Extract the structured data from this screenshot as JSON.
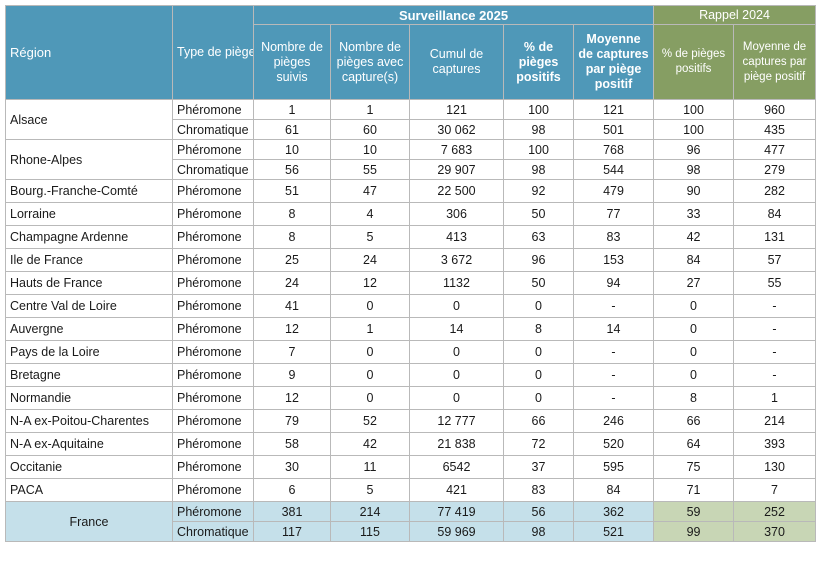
{
  "header": {
    "region": "Région",
    "type": "Type de piège",
    "group_2025": "Surveillance 2025",
    "group_2024": "Rappel 2024",
    "col_suivis": "Nombre de pièges suivis",
    "col_capture": "Nombre de pièges avec capture(s)",
    "col_cumul": "Cumul de captures",
    "col_pct": "% de pièges positifs",
    "col_moy": "Moyenne de captures par piège positif",
    "col_pct_2024": "% de pièges positifs",
    "col_moy_2024": "Moyenne de captures par piège positif"
  },
  "rows": [
    {
      "region": "Alsace",
      "lines": [
        {
          "type": "Phéromone",
          "suivis": "1",
          "capture": "1",
          "cumul": "121",
          "pct": "100",
          "moy": "121",
          "pct24": "100",
          "moy24": "960"
        },
        {
          "type": "Chromatique",
          "suivis": "61",
          "capture": "60",
          "cumul": "30 062",
          "pct": "98",
          "moy": "501",
          "pct24": "100",
          "moy24": "435"
        }
      ]
    },
    {
      "region": "Rhone-Alpes",
      "lines": [
        {
          "type": "Phéromone",
          "suivis": "10",
          "capture": "10",
          "cumul": "7 683",
          "pct": "100",
          "moy": "768",
          "pct24": "96",
          "moy24": "477"
        },
        {
          "type": "Chromatique",
          "suivis": "56",
          "capture": "55",
          "cumul": "29 907",
          "pct": "98",
          "moy": "544",
          "pct24": "98",
          "moy24": "279"
        }
      ]
    },
    {
      "region": "Bourg.-Franche-Comté",
      "lines": [
        {
          "type": "Phéromone",
          "suivis": "51",
          "capture": "47",
          "cumul": "22 500",
          "pct": "92",
          "moy": "479",
          "pct24": "90",
          "moy24": "282"
        }
      ]
    },
    {
      "region": "Lorraine",
      "lines": [
        {
          "type": "Phéromone",
          "suivis": "8",
          "capture": "4",
          "cumul": "306",
          "pct": "50",
          "moy": "77",
          "pct24": "33",
          "moy24": "84"
        }
      ]
    },
    {
      "region": "Champagne Ardenne",
      "lines": [
        {
          "type": "Phéromone",
          "suivis": "8",
          "capture": "5",
          "cumul": "413",
          "pct": "63",
          "moy": "83",
          "pct24": "42",
          "moy24": "131"
        }
      ]
    },
    {
      "region": "Ile de France",
      "lines": [
        {
          "type": "Phéromone",
          "suivis": "25",
          "capture": "24",
          "cumul": "3 672",
          "pct": "96",
          "moy": "153",
          "pct24": "84",
          "moy24": "57"
        }
      ]
    },
    {
      "region": "Hauts de France",
      "lines": [
        {
          "type": "Phéromone",
          "suivis": "24",
          "capture": "12",
          "cumul": "1132",
          "pct": "50",
          "moy": "94",
          "pct24": "27",
          "moy24": "55"
        }
      ]
    },
    {
      "region": "Centre Val de Loire",
      "lines": [
        {
          "type": "Phéromone",
          "suivis": "41",
          "capture": "0",
          "cumul": "0",
          "pct": "0",
          "moy": "-",
          "pct24": "0",
          "moy24": "-"
        }
      ]
    },
    {
      "region": "Auvergne",
      "lines": [
        {
          "type": "Phéromone",
          "suivis": "12",
          "capture": "1",
          "cumul": "14",
          "pct": "8",
          "moy": "14",
          "pct24": "0",
          "moy24": "-"
        }
      ]
    },
    {
      "region": "Pays de la Loire",
      "lines": [
        {
          "type": "Phéromone",
          "suivis": "7",
          "capture": "0",
          "cumul": "0",
          "pct": "0",
          "moy": "-",
          "pct24": "0",
          "moy24": "-"
        }
      ]
    },
    {
      "region": "Bretagne",
      "lines": [
        {
          "type": "Phéromone",
          "suivis": "9",
          "capture": "0",
          "cumul": "0",
          "pct": "0",
          "moy": "-",
          "pct24": "0",
          "moy24": "-"
        }
      ]
    },
    {
      "region": "Normandie",
      "lines": [
        {
          "type": "Phéromone",
          "suivis": "12",
          "capture": "0",
          "cumul": "0",
          "pct": "0",
          "moy": "-",
          "pct24": "8",
          "moy24": "1"
        }
      ]
    },
    {
      "region": "N-A ex-Poitou-Charentes",
      "lines": [
        {
          "type": "Phéromone",
          "suivis": "79",
          "capture": "52",
          "cumul": "12 777",
          "pct": "66",
          "moy": "246",
          "pct24": "66",
          "moy24": "214"
        }
      ]
    },
    {
      "region": "N-A ex-Aquitaine",
      "lines": [
        {
          "type": "Phéromone",
          "suivis": "58",
          "capture": "42",
          "cumul": "21 838",
          "pct": "72",
          "moy": "520",
          "pct24": "64",
          "moy24": "393"
        }
      ]
    },
    {
      "region": "Occitanie",
      "lines": [
        {
          "type": "Phéromone",
          "suivis": "30",
          "capture": "11",
          "cumul": "6542",
          "pct": "37",
          "moy": "595",
          "pct24": "75",
          "moy24": "130"
        }
      ]
    },
    {
      "region": "PACA",
      "lines": [
        {
          "type": "Phéromone",
          "suivis": "6",
          "capture": "5",
          "cumul": "421",
          "pct": "83",
          "moy": "84",
          "pct24": "71",
          "moy24": "7"
        }
      ]
    }
  ],
  "total": {
    "region": "France",
    "lines": [
      {
        "type": "Phéromone",
        "suivis": "381",
        "capture": "214",
        "cumul": "77 419",
        "pct": "56",
        "moy": "362",
        "pct24": "59",
        "moy24": "252"
      },
      {
        "type": "Chromatique",
        "suivis": "117",
        "capture": "115",
        "cumul": "59 969",
        "pct": "98",
        "moy": "521",
        "pct24": "99",
        "moy24": "370"
      }
    ]
  },
  "colors": {
    "header_2025": "#4f98b8",
    "header_2024": "#869e63",
    "total_2025": "#c5e0ea",
    "total_2024": "#c8d6b5"
  }
}
